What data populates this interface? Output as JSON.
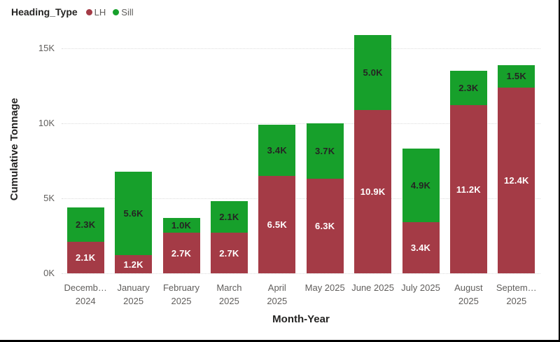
{
  "legend": {
    "title": "Heading_Type",
    "items": [
      {
        "label": "LH",
        "color": "#A43B46"
      },
      {
        "label": "Sill",
        "color": "#17A02B"
      }
    ]
  },
  "colors": {
    "lh": "#A43B46",
    "sill": "#17A02B",
    "axis_text": "#605E5C",
    "title_text": "#252423",
    "gridline": "#DCDCDC",
    "frame_border": "#000000"
  },
  "chart_data": {
    "type": "bar",
    "stacked": true,
    "title": "",
    "xlabel": "Month-Year",
    "ylabel": "Cumulative Tonnage",
    "ylim": [
      0,
      16500
    ],
    "grid": "horizontal-dotted",
    "legend_position": "top-left",
    "yticks": [
      {
        "value": 0,
        "label": "0K"
      },
      {
        "value": 5000,
        "label": "5K"
      },
      {
        "value": 10000,
        "label": "10K"
      },
      {
        "value": 15000,
        "label": "15K"
      }
    ],
    "categories": [
      "December 2024",
      "January 2025",
      "February 2025",
      "March 2025",
      "April 2025",
      "May 2025",
      "June 2025",
      "July 2025",
      "August 2025",
      "September 2025"
    ],
    "category_labels": [
      [
        "Decemb…",
        "2024"
      ],
      [
        "January",
        "2025"
      ],
      [
        "February",
        "2025"
      ],
      [
        "March",
        "2025"
      ],
      [
        "April",
        "2025"
      ],
      [
        "May 2025"
      ],
      [
        "June 2025"
      ],
      [
        "July 2025"
      ],
      [
        "August",
        "2025"
      ],
      [
        "Septem…",
        "2025"
      ]
    ],
    "series": [
      {
        "name": "LH",
        "color": "#A43B46",
        "label_color": "#FFFFFF",
        "values": [
          2100,
          1200,
          2700,
          2700,
          6500,
          6300,
          10900,
          3400,
          11200,
          12400
        ],
        "labels": [
          "2.1K",
          "1.2K",
          "2.7K",
          "2.7K",
          "6.5K",
          "6.3K",
          "10.9K",
          "3.4K",
          "11.2K",
          "12.4K"
        ]
      },
      {
        "name": "Sill",
        "color": "#17A02B",
        "label_color": "#252423",
        "values": [
          2300,
          5600,
          1000,
          2100,
          3400,
          3700,
          5000,
          4900,
          2300,
          1500
        ],
        "labels": [
          "2.3K",
          "5.6K",
          "1.0K",
          "2.1K",
          "3.4K",
          "3.7K",
          "5.0K",
          "4.9K",
          "2.3K",
          "1.5K"
        ]
      }
    ]
  }
}
